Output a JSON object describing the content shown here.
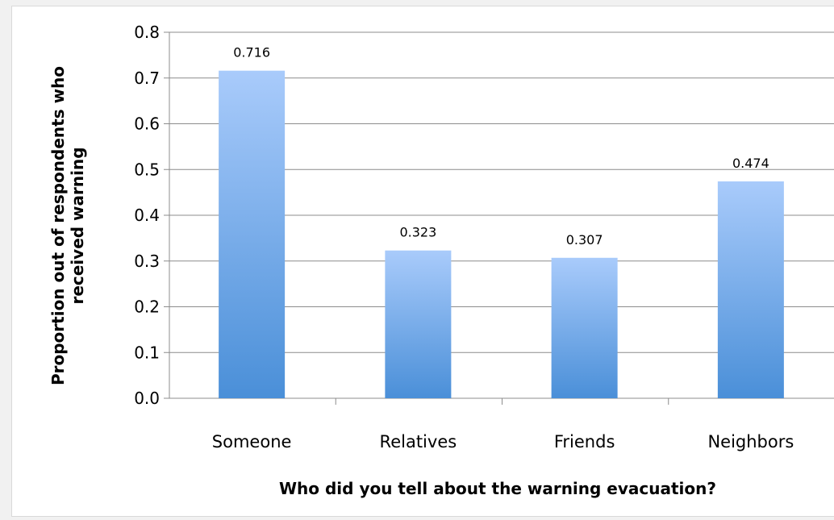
{
  "chart_data": {
    "type": "bar",
    "categories": [
      "Someone",
      "Relatives",
      "Friends",
      "Neighbors"
    ],
    "values": [
      0.716,
      0.323,
      0.307,
      0.474
    ],
    "data_labels": [
      "0.716",
      "0.323",
      "0.307",
      "0.474"
    ],
    "xlabel": "Who did you tell about the warning evacuation?",
    "ylabel_lines": [
      "Proportion out of respondents who",
      "received warning"
    ],
    "ylim": [
      0,
      0.8
    ],
    "yticks": [
      "0.0",
      "0.1",
      "0.2",
      "0.3",
      "0.4",
      "0.5",
      "0.6",
      "0.7",
      "0.8"
    ],
    "grid": true,
    "colors": {
      "bar_top": "#a9cbfb",
      "bar_bottom": "#4a8fd8",
      "grid": "#8c8c8c"
    }
  }
}
